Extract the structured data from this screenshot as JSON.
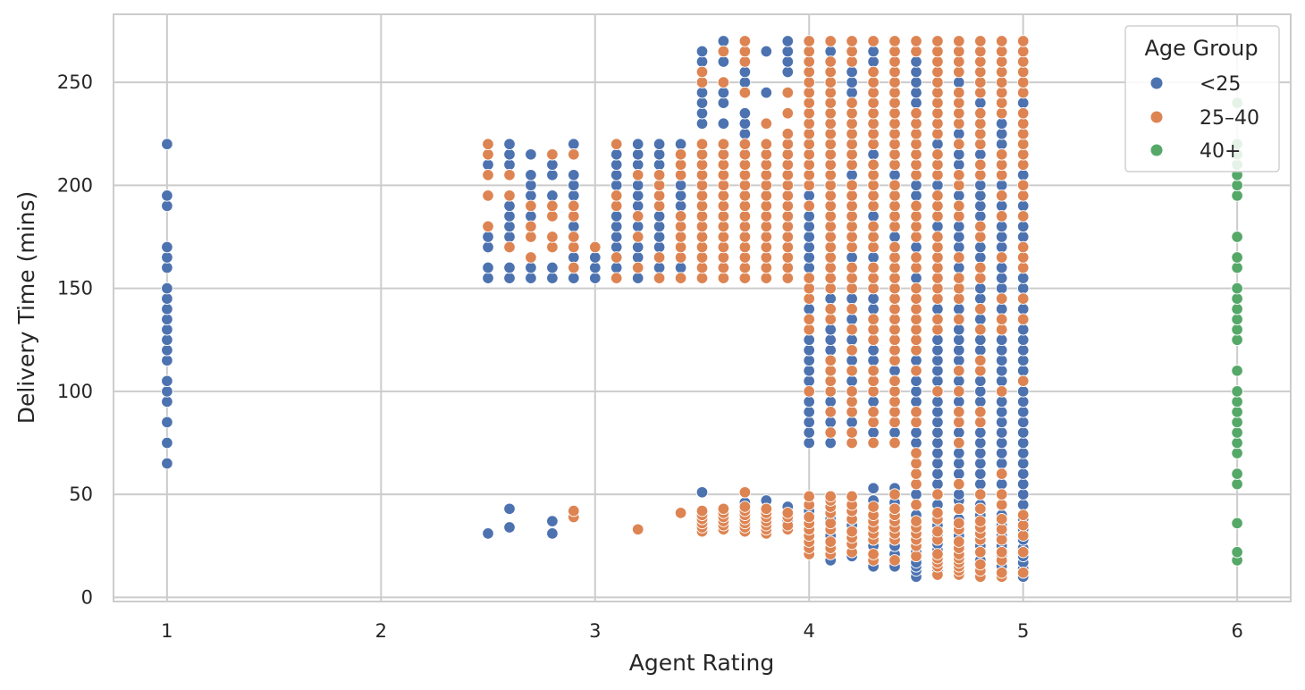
{
  "chart_data": {
    "type": "scatter",
    "title": "",
    "xlabel": "Agent Rating",
    "ylabel": "Delivery Time (mins)",
    "xlim": [
      0.75,
      6.25
    ],
    "ylim": [
      -2,
      283
    ],
    "xticks": [
      1,
      2,
      3,
      4,
      5,
      6
    ],
    "yticks": [
      0,
      50,
      100,
      150,
      200,
      250
    ],
    "grid": true,
    "legend": {
      "title": "Age Group",
      "placement": "top-right"
    },
    "series": [
      {
        "name": "<25",
        "color": "#4c72b0"
      },
      {
        "name": "25–40",
        "color": "#dd8452"
      },
      {
        "name": "40+",
        "color": "#55a868"
      }
    ],
    "points": [
      {
        "series": "<25",
        "x": 1,
        "y": [
          65,
          75,
          85,
          95,
          100,
          105,
          115,
          120,
          125,
          130,
          135,
          140,
          145,
          150,
          160,
          165,
          170,
          190,
          195,
          220
        ]
      },
      {
        "series": "40+",
        "x": 6,
        "y": [
          18,
          22,
          36,
          55,
          60,
          70,
          75,
          80,
          85,
          90,
          95,
          100,
          110,
          125,
          130,
          135,
          140,
          145,
          150,
          160,
          165,
          175,
          195,
          200,
          205,
          210,
          215,
          220,
          240
        ]
      },
      {
        "series": "<25",
        "x": 2.5,
        "y": [
          31,
          155,
          160,
          170,
          175,
          210
        ]
      },
      {
        "series": "25–40",
        "x": 2.5,
        "y": [
          180,
          195,
          205,
          215,
          220
        ]
      },
      {
        "series": "<25",
        "x": 2.6,
        "y": [
          34,
          43,
          155,
          160,
          175,
          180,
          185,
          190,
          210,
          215,
          220
        ]
      },
      {
        "series": "25–40",
        "x": 2.6,
        "y": [
          170,
          195,
          205
        ]
      },
      {
        "series": "<25",
        "x": 2.7,
        "y": [
          155,
          160,
          185,
          195,
          200,
          205,
          215
        ]
      },
      {
        "series": "25–40",
        "x": 2.7,
        "y": [
          165,
          175,
          180,
          190
        ]
      },
      {
        "series": "<25",
        "x": 2.8,
        "y": [
          31,
          37,
          155,
          160,
          195,
          205,
          210
        ]
      },
      {
        "series": "25–40",
        "x": 2.8,
        "y": [
          170,
          175,
          185,
          190,
          215
        ]
      },
      {
        "series": "<25",
        "x": 2.9,
        "y": [
          155,
          165,
          180,
          195,
          200,
          205,
          220
        ]
      },
      {
        "series": "25–40",
        "x": 2.9,
        "y": [
          39,
          42,
          160,
          170,
          175,
          185,
          190,
          215
        ]
      },
      {
        "series": "<25",
        "x": 3.0,
        "y": [
          155,
          160,
          165
        ]
      },
      {
        "series": "25–40",
        "x": 3.0,
        "y": [
          170
        ]
      },
      {
        "series": "<25",
        "x": 3.1,
        "y": [
          160,
          170,
          175,
          180,
          185,
          200,
          205,
          210,
          215
        ]
      },
      {
        "series": "25–40",
        "x": 3.1,
        "y": [
          155,
          165,
          190,
          195,
          220
        ]
      },
      {
        "series": "<25",
        "x": 3.2,
        "y": [
          155,
          165,
          170,
          180,
          190,
          195,
          200,
          210,
          215,
          220
        ]
      },
      {
        "series": "25–40",
        "x": 3.2,
        "y": [
          33,
          160,
          175,
          185,
          205
        ]
      },
      {
        "series": "<25",
        "x": 3.3,
        "y": [
          160,
          170,
          175,
          180,
          185,
          210,
          215,
          220
        ]
      },
      {
        "series": "25–40",
        "x": 3.3,
        "y": [
          155,
          165,
          190,
          195,
          200,
          205
        ]
      },
      {
        "series": "<25",
        "x": 3.4,
        "y": [
          160,
          190,
          195,
          200,
          220
        ]
      },
      {
        "series": "25–40",
        "x": 3.4,
        "y": [
          41,
          155,
          165,
          170,
          175,
          180,
          185,
          205,
          210,
          215
        ]
      },
      {
        "series": "<25",
        "x": 3.5,
        "y": [
          51,
          230,
          235,
          240,
          245,
          260,
          265
        ]
      },
      {
        "series": "25–40",
        "x": 3.5,
        "y": [
          32,
          34,
          36,
          38,
          40,
          42,
          155,
          160,
          165,
          170,
          175,
          180,
          185,
          190,
          195,
          200,
          205,
          210,
          215,
          220,
          250,
          255
        ]
      },
      {
        "series": "<25",
        "x": 3.6,
        "y": [
          230,
          240,
          245,
          260,
          270
        ]
      },
      {
        "series": "25–40",
        "x": 3.6,
        "y": [
          33,
          35,
          37,
          39,
          41,
          43,
          155,
          160,
          165,
          170,
          175,
          180,
          185,
          190,
          195,
          200,
          205,
          210,
          215,
          220,
          250,
          265
        ]
      },
      {
        "series": "<25",
        "x": 3.7,
        "y": [
          46,
          225,
          230,
          235,
          250,
          255
        ]
      },
      {
        "series": "25–40",
        "x": 3.7,
        "y": [
          32,
          34,
          36,
          38,
          40,
          42,
          44,
          51,
          155,
          160,
          165,
          170,
          175,
          180,
          185,
          190,
          195,
          200,
          205,
          210,
          215,
          220,
          245,
          260,
          265,
          270
        ]
      },
      {
        "series": "<25",
        "x": 3.8,
        "y": [
          47,
          245,
          265
        ]
      },
      {
        "series": "25–40",
        "x": 3.8,
        "y": [
          31,
          33,
          35,
          37,
          39,
          41,
          43,
          155,
          160,
          165,
          170,
          175,
          180,
          185,
          190,
          195,
          200,
          205,
          210,
          215,
          220,
          230
        ]
      },
      {
        "series": "<25",
        "x": 3.9,
        "y": [
          37,
          44,
          255,
          260,
          265,
          270
        ]
      },
      {
        "series": "25–40",
        "x": 3.9,
        "y": [
          33,
          35,
          39,
          41,
          155,
          160,
          165,
          170,
          175,
          180,
          185,
          190,
          195,
          200,
          205,
          210,
          215,
          220,
          225,
          235,
          245
        ]
      },
      {
        "series": "<25",
        "x": 4.0,
        "y": [
          25,
          42,
          75,
          80,
          85,
          90,
          95,
          105,
          110,
          115,
          120,
          125,
          140,
          160,
          165,
          170,
          175,
          180,
          185,
          195
        ]
      },
      {
        "series": "25–40",
        "x": 4.0,
        "y": [
          21,
          24,
          27,
          30,
          33,
          36,
          39,
          45,
          49,
          100,
          130,
          135,
          145,
          150,
          155,
          190,
          200,
          205,
          210,
          215,
          220,
          225,
          230,
          235,
          240,
          245,
          250,
          255,
          260,
          265,
          270
        ]
      },
      {
        "series": "<25",
        "x": 4.1,
        "y": [
          18,
          30,
          38,
          75,
          85,
          95,
          120,
          125,
          130,
          145,
          265
        ]
      },
      {
        "series": "25–40",
        "x": 4.1,
        "y": [
          21,
          24,
          27,
          33,
          36,
          41,
          44,
          47,
          49,
          80,
          90,
          100,
          105,
          110,
          115,
          135,
          140,
          150,
          155,
          160,
          165,
          170,
          175,
          180,
          185,
          190,
          195,
          200,
          205,
          210,
          215,
          220,
          225,
          230,
          235,
          240,
          245,
          250,
          255,
          260,
          270
        ]
      },
      {
        "series": "<25",
        "x": 4.2,
        "y": [
          20,
          35,
          85,
          105,
          115,
          125,
          135,
          145,
          165,
          205,
          245,
          250,
          255
        ]
      },
      {
        "series": "25–40",
        "x": 4.2,
        "y": [
          22,
          26,
          29,
          32,
          38,
          42,
          45,
          49,
          75,
          80,
          90,
          95,
          100,
          110,
          120,
          130,
          140,
          150,
          155,
          160,
          170,
          175,
          180,
          185,
          190,
          195,
          200,
          210,
          215,
          220,
          225,
          230,
          235,
          240,
          260,
          265,
          270
        ]
      },
      {
        "series": "<25",
        "x": 4.3,
        "y": [
          15,
          25,
          47,
          53,
          80,
          95,
          115,
          120,
          140,
          145,
          165,
          185,
          215,
          260,
          265
        ]
      },
      {
        "series": "25–40",
        "x": 4.3,
        "y": [
          18,
          21,
          28,
          31,
          34,
          37,
          40,
          44,
          75,
          85,
          90,
          100,
          105,
          110,
          125,
          130,
          135,
          150,
          155,
          160,
          170,
          175,
          180,
          190,
          195,
          200,
          205,
          210,
          220,
          225,
          230,
          235,
          240,
          245,
          250,
          255,
          270
        ]
      },
      {
        "series": "<25",
        "x": 4.4,
        "y": [
          15,
          21,
          25,
          46,
          53,
          80,
          110,
          175,
          205
        ]
      },
      {
        "series": "25–40",
        "x": 4.4,
        "y": [
          18,
          28,
          31,
          34,
          37,
          40,
          43,
          50,
          75,
          85,
          90,
          95,
          100,
          105,
          115,
          120,
          125,
          130,
          135,
          140,
          145,
          150,
          155,
          160,
          165,
          170,
          180,
          185,
          190,
          195,
          200,
          210,
          215,
          220,
          225,
          230,
          235,
          240,
          245,
          250,
          255,
          260,
          265,
          270
        ]
      },
      {
        "series": "<25",
        "x": 4.5,
        "y": [
          10,
          13,
          15,
          17,
          22,
          40,
          50,
          75,
          80,
          95,
          100,
          105,
          115,
          155,
          170,
          195,
          200,
          240,
          245,
          250,
          255,
          260
        ]
      },
      {
        "series": "25–40",
        "x": 4.5,
        "y": [
          20,
          25,
          28,
          31,
          34,
          37,
          45,
          55,
          60,
          65,
          70,
          85,
          90,
          110,
          120,
          125,
          130,
          135,
          140,
          145,
          150,
          160,
          165,
          175,
          180,
          185,
          190,
          205,
          210,
          215,
          220,
          225,
          230,
          235,
          265,
          270
        ]
      },
      {
        "series": "<25",
        "x": 4.6,
        "y": [
          13,
          23,
          26,
          30,
          35,
          45,
          55,
          60,
          65,
          70,
          75,
          80,
          85,
          90,
          95,
          105,
          110,
          115,
          120,
          125,
          140,
          180,
          200,
          220
        ]
      },
      {
        "series": "25–40",
        "x": 4.6,
        "y": [
          11,
          15,
          17,
          19,
          21,
          28,
          32,
          38,
          41,
          50,
          100,
          130,
          135,
          145,
          150,
          155,
          160,
          165,
          170,
          175,
          185,
          190,
          195,
          205,
          210,
          215,
          225,
          230,
          235,
          240,
          245,
          250,
          255,
          260,
          265,
          270
        ]
      },
      {
        "series": "<25",
        "x": 4.7,
        "y": [
          30,
          38,
          47,
          50,
          60,
          65,
          70,
          80,
          95,
          105,
          115,
          120,
          125,
          130,
          140,
          160,
          170,
          175,
          180,
          195,
          210,
          215,
          225,
          250
        ]
      },
      {
        "series": "25–40",
        "x": 4.7,
        "y": [
          11,
          13,
          15,
          17,
          19,
          21,
          24,
          27,
          33,
          36,
          43,
          55,
          75,
          85,
          90,
          100,
          110,
          135,
          145,
          150,
          155,
          165,
          185,
          190,
          200,
          205,
          220,
          230,
          235,
          240,
          245,
          255,
          260,
          265,
          270
        ]
      },
      {
        "series": "<25",
        "x": 4.8,
        "y": [
          18,
          25,
          40,
          45,
          55,
          60,
          65,
          70,
          75,
          80,
          95,
          100,
          105,
          120,
          125,
          135,
          145,
          150,
          165,
          170,
          185,
          190,
          195,
          200,
          215,
          240
        ]
      },
      {
        "series": "25–40",
        "x": 4.8,
        "y": [
          10,
          13,
          16,
          22,
          28,
          31,
          34,
          37,
          43,
          50,
          85,
          90,
          110,
          115,
          130,
          140,
          155,
          160,
          175,
          180,
          205,
          210,
          220,
          225,
          230,
          235,
          245,
          250,
          255,
          260,
          265,
          270
        ]
      },
      {
        "series": "<25",
        "x": 4.9,
        "y": [
          15,
          20,
          25,
          30,
          35,
          40,
          55,
          65,
          70,
          75,
          80,
          85,
          90,
          95,
          105,
          110,
          115,
          120,
          125,
          140,
          150,
          155,
          160,
          170,
          175,
          180,
          190,
          200,
          220,
          225,
          230
        ]
      },
      {
        "series": "25–40",
        "x": 4.9,
        "y": [
          10,
          12,
          18,
          22,
          28,
          33,
          38,
          45,
          50,
          60,
          100,
          130,
          135,
          145,
          165,
          185,
          195,
          205,
          210,
          215,
          235,
          240,
          245,
          250,
          255,
          260,
          265,
          270
        ]
      },
      {
        "series": "<25",
        "x": 5.0,
        "y": [
          10,
          14,
          17,
          20,
          24,
          28,
          33,
          38,
          45,
          50,
          55,
          60,
          65,
          70,
          75,
          80,
          85,
          90,
          95,
          100,
          110,
          115,
          120,
          125,
          130,
          140,
          150,
          155,
          175,
          180,
          190,
          205,
          240
        ]
      },
      {
        "series": "25–40",
        "x": 5.0,
        "y": [
          12,
          22,
          30,
          35,
          40,
          105,
          135,
          145,
          160,
          165,
          170,
          185,
          195,
          200,
          210,
          215,
          220,
          225,
          230,
          235,
          245,
          250,
          255,
          260,
          265,
          270
        ]
      }
    ]
  }
}
